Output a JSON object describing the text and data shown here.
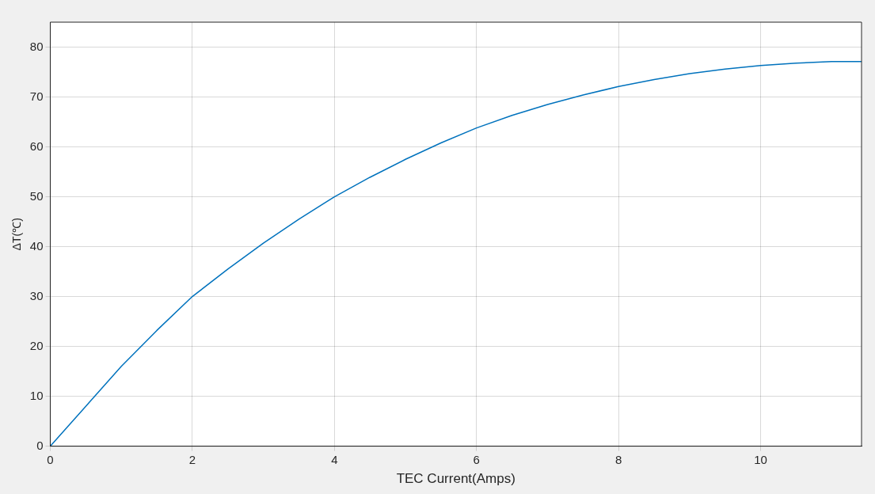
{
  "chart_data": {
    "type": "line",
    "xlabel": "TEC Current(Amps)",
    "ylabel": "ΔT(℃)",
    "x": [
      0,
      0.5,
      1,
      1.5,
      2,
      2.5,
      3,
      3.5,
      4,
      4.5,
      5,
      5.5,
      6,
      6.5,
      7,
      7.5,
      8,
      8.5,
      9,
      9.5,
      10,
      10.5,
      11,
      11.42
    ],
    "series": [
      {
        "color": "#0072bd",
        "values": [
          0,
          8,
          16,
          23.2,
          30,
          35.5,
          40.7,
          45.5,
          50,
          53.9,
          57.5,
          60.8,
          63.8,
          66.3,
          68.5,
          70.4,
          72.1,
          73.5,
          74.7,
          75.6,
          76.3,
          76.8,
          77.1,
          77.1
        ]
      }
    ],
    "xlim": [
      0,
      11.42
    ],
    "xticks": [
      0,
      2,
      4,
      6,
      8,
      10
    ],
    "ylim": [
      0,
      85
    ],
    "yticks": [
      0,
      10,
      20,
      30,
      40,
      50,
      60,
      70,
      80
    ],
    "grid": true,
    "legend": false,
    "marker": "none",
    "line_style": "solid"
  }
}
